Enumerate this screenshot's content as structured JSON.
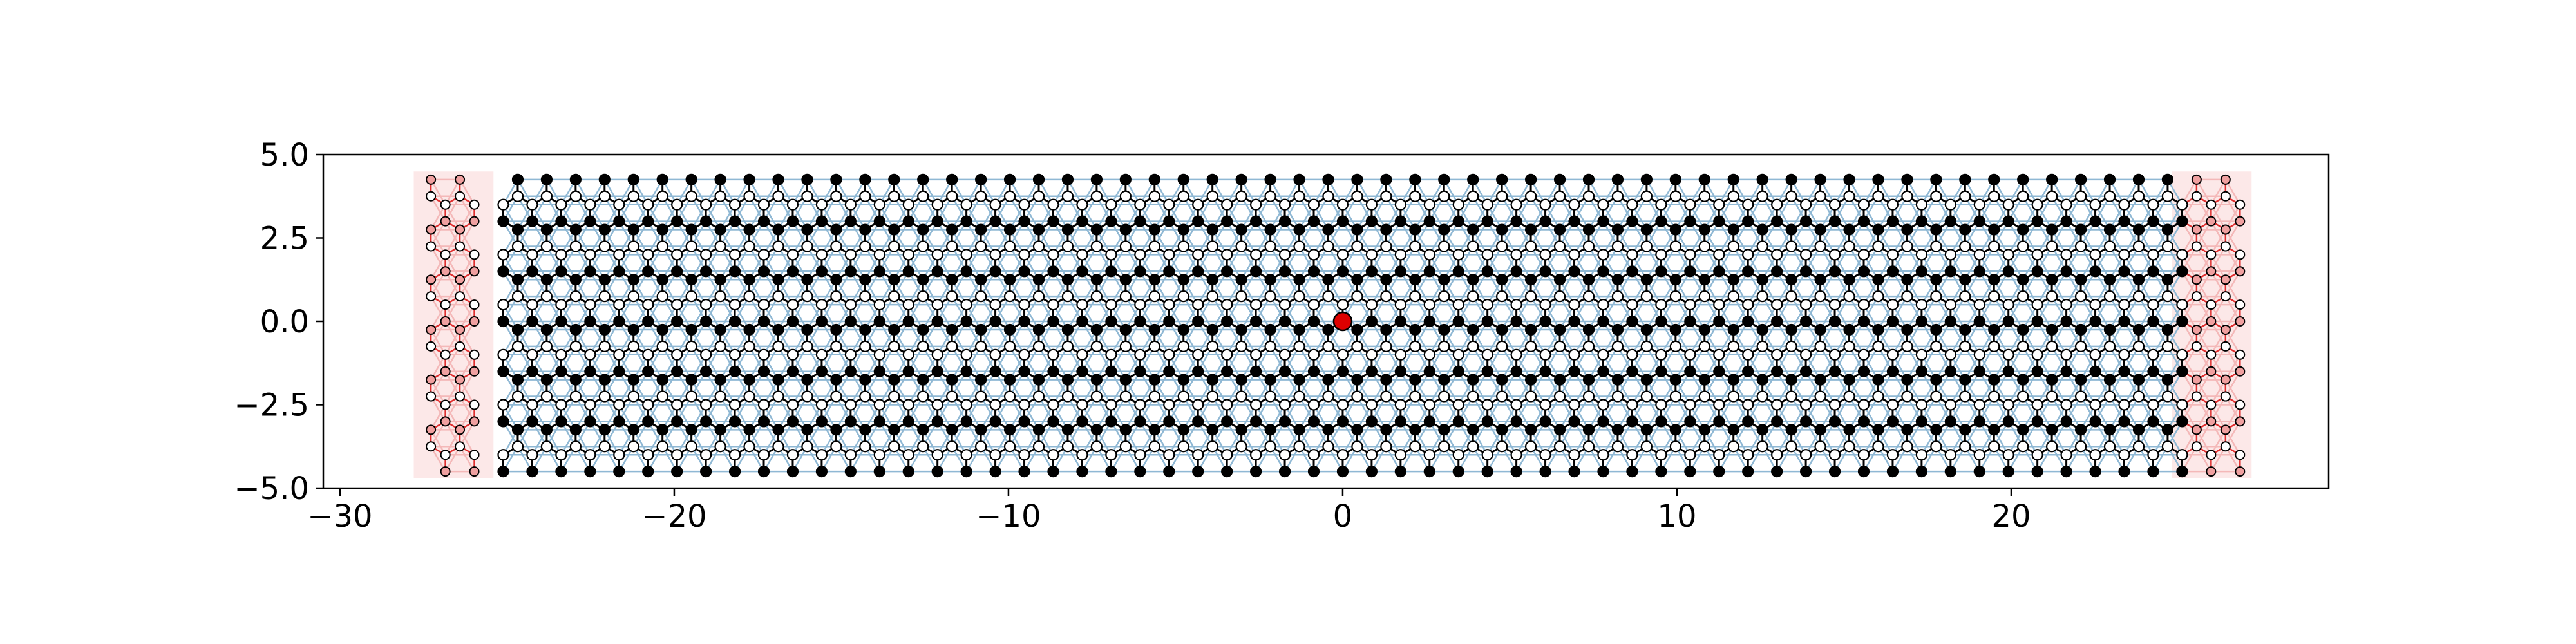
{
  "chart_data": {
    "type": "scatter",
    "title": "",
    "xlabel": "",
    "ylabel": "",
    "xlim": [
      -30.5,
      29.5
    ],
    "ylim": [
      -5.0,
      5.0
    ],
    "xticks": [
      {
        "value": -30,
        "label": "−30"
      },
      {
        "value": -20,
        "label": "−20"
      },
      {
        "value": -10,
        "label": "−10"
      },
      {
        "value": 0,
        "label": "0"
      },
      {
        "value": 10,
        "label": "10"
      },
      {
        "value": 20,
        "label": "20"
      }
    ],
    "yticks": [
      {
        "value": 5.0,
        "label": "5.0"
      },
      {
        "value": 2.5,
        "label": "2.5"
      },
      {
        "value": 0.0,
        "label": "0.0"
      },
      {
        "value": -2.5,
        "label": "−2.5"
      },
      {
        "value": -5.0,
        "label": "−5.0"
      }
    ],
    "grid": false,
    "legend": "none",
    "lattice": {
      "description": "honeycomb (graphene-like) ribbon",
      "bond_length": 0.5,
      "scattering_region_x": [
        -25.5,
        25.5
      ],
      "lead_left_x": [
        -27.6,
        -25.6
      ],
      "lead_right_x": [
        25.0,
        27.0
      ],
      "y_range": [
        -4.5,
        4.3
      ]
    },
    "highlighted_site": {
      "x": 0.0,
      "y": 0.0
    },
    "colors": {
      "sublattice_a": "#000000",
      "sublattice_b": "#ffffff",
      "hopping_main": "#000000",
      "hopping_secondary": "#8fb8d4",
      "lead_sites": "#f0a0a0",
      "lead_bonds": "#e03030",
      "lead_shading": "#fce8e8",
      "highlight": "#dd0000"
    }
  }
}
